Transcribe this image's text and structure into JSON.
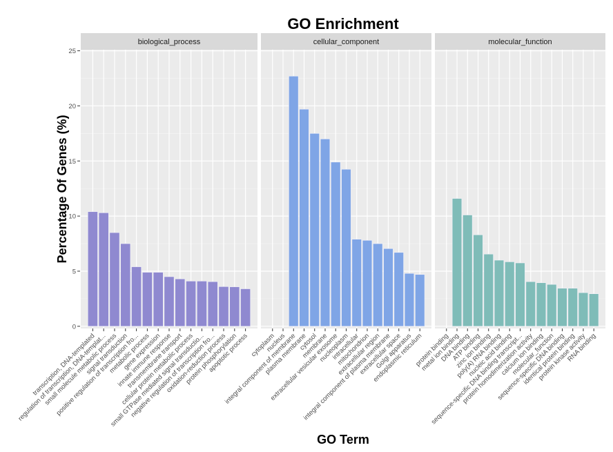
{
  "chart_data": {
    "type": "bar",
    "title": "GO Enrichment",
    "xlabel": "GO Term",
    "ylabel": "Percentage Of Genes (%)",
    "ylim": [
      -0.2,
      25.1
    ],
    "yticks": [
      0,
      5,
      10,
      15,
      20,
      25
    ],
    "grid": true,
    "panels": [
      {
        "name": "biological_process",
        "color": "#8f89d0",
        "categories": [
          "transcription, DNA-templated",
          "regulation of transcription, DNA-templat...",
          "small molecule metabolic process",
          "signal transduction",
          "positive regulation of transcription fro...",
          "metabolic process",
          "gene expression",
          "innate immune response",
          "transmembrane transport",
          "cellular protein metabolic process",
          "small GTPase mediated signal transductio...",
          "negative regulation of transcription fro...",
          "oxidation-reduction process",
          "protein phosphorylation",
          "apoptotic process"
        ],
        "values": [
          10.4,
          10.3,
          8.5,
          7.5,
          5.4,
          4.9,
          4.9,
          4.5,
          4.3,
          4.1,
          4.1,
          4.05,
          3.6,
          3.58,
          3.4
        ]
      },
      {
        "name": "cellular_component",
        "color": "#7fa5e6",
        "categories": [
          "cytoplasm",
          "nucleus",
          "integral component of membrane",
          "plasma membrane",
          "cytosol",
          "membrane",
          "extracellular vesicular exosome",
          "nucleoplasm",
          "intracellular",
          "mitochondrion",
          "extracellular region",
          "integral component of plasma membrane",
          "extracellular space",
          "Golgi apparatus",
          "endoplasmic reticulum"
        ],
        "values": [
          0,
          0,
          22.7,
          19.7,
          17.5,
          17.0,
          14.9,
          14.25,
          7.9,
          7.8,
          7.5,
          7.05,
          6.7,
          4.8,
          4.7
        ]
      },
      {
        "name": "molecular_function",
        "color": "#7fbcb8",
        "categories": [
          "protein binding",
          "metal ion binding",
          "DNA binding",
          "ATP binding",
          "zinc ion binding",
          "poly(A) RNA binding",
          "nucleic acid binding",
          "sequence-specific DNA binding transcript...",
          "protein homodimerization activity",
          "calcium ion binding",
          "molecular_function",
          "sequence-specific DNA binding",
          "identical protein binding",
          "protein kinase activity",
          "RNA binding"
        ],
        "values": [
          0,
          11.6,
          10.1,
          8.3,
          6.55,
          6.0,
          5.85,
          5.75,
          4.05,
          3.95,
          3.8,
          3.45,
          3.45,
          3.05,
          2.95
        ]
      }
    ]
  }
}
